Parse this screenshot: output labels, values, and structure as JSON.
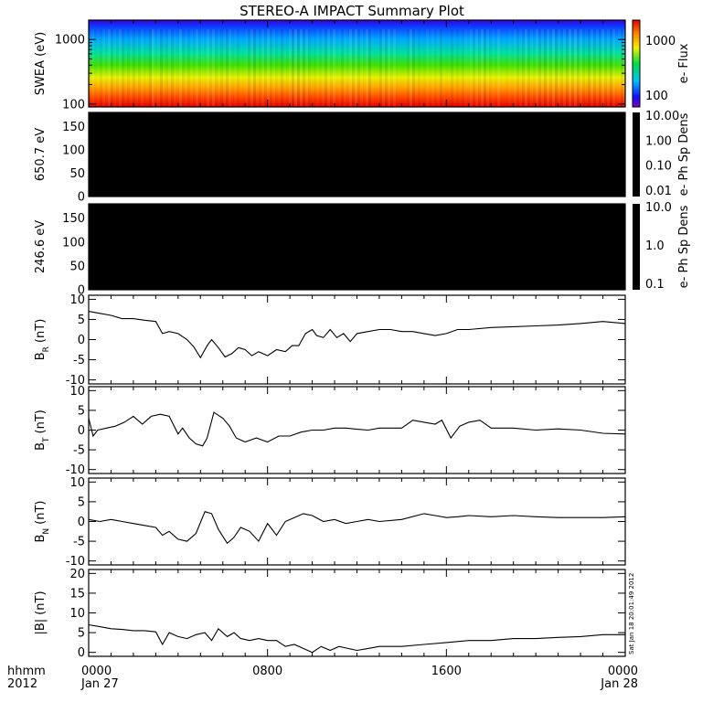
{
  "title": "STEREO-A IMPACT Summary Plot",
  "stamp": "Sat Jan 18 20:01:49 2012",
  "colors": {
    "frame": "#000000",
    "line": "#000000",
    "dark": "#000000"
  },
  "x_axis": {
    "range_hours": [
      0,
      24
    ],
    "ticks": [
      {
        "hour": 0,
        "label": "0000",
        "sublabel": "Jan 27"
      },
      {
        "hour": 8,
        "label": "0800",
        "sublabel": ""
      },
      {
        "hour": 16,
        "label": "1600",
        "sublabel": ""
      },
      {
        "hour": 24,
        "label": "0000",
        "sublabel": "Jan 28"
      }
    ],
    "left_label_1": "hhmm",
    "left_label_2": "2012"
  },
  "chart_data": [
    {
      "type": "heatmap",
      "ylabel": "SWEA (eV)",
      "ylim": [
        90,
        2000
      ],
      "yscale": "log",
      "yticks": [
        {
          "value": 100,
          "label": "100"
        },
        {
          "value": 1000,
          "label": "1000"
        }
      ],
      "colorbar": {
        "label": "e- Flux",
        "ticks": [
          "1000",
          "100"
        ],
        "scale": "rainbow"
      }
    },
    {
      "type": "heatmap",
      "ylabel": "650.7 eV",
      "ylim": [
        0,
        180
      ],
      "yticks": [
        {
          "value": 0,
          "label": "0"
        },
        {
          "value": 50,
          "label": "50"
        },
        {
          "value": 100,
          "label": "100"
        },
        {
          "value": 150,
          "label": "150"
        }
      ],
      "colorbar": {
        "label": "e- Ph Sp Dens",
        "ticks": [
          "10.00",
          "1.00",
          "0.10",
          "0.01"
        ]
      }
    },
    {
      "type": "heatmap",
      "ylabel": "246.6 eV",
      "ylim": [
        0,
        180
      ],
      "yticks": [
        {
          "value": 0,
          "label": "0"
        },
        {
          "value": 50,
          "label": "50"
        },
        {
          "value": 100,
          "label": "100"
        },
        {
          "value": 150,
          "label": "150"
        }
      ],
      "colorbar": {
        "label": "e- Ph Sp Dens",
        "ticks": [
          "10.0",
          "1.0",
          "0.1"
        ]
      }
    },
    {
      "type": "line",
      "ylabel": "B",
      "ylabel_sub": "R",
      "ylabel_unit": "(nT)",
      "ylim": [
        -11,
        11
      ],
      "yticks": [
        {
          "value": 10,
          "label": "10"
        },
        {
          "value": 5,
          "label": "5"
        },
        {
          "value": 0,
          "label": "0"
        },
        {
          "value": -5,
          "label": "-5"
        },
        {
          "value": -10,
          "label": "-10"
        }
      ],
      "x": [
        0,
        0.5,
        1,
        1.5,
        2,
        2.5,
        3,
        3.3,
        3.6,
        4,
        4.4,
        4.7,
        5,
        5.3,
        5.5,
        5.8,
        6.1,
        6.4,
        6.7,
        7,
        7.3,
        7.6,
        8,
        8.4,
        8.8,
        9.1,
        9.4,
        9.7,
        10,
        10.2,
        10.5,
        10.8,
        11.1,
        11.4,
        11.7,
        12,
        12.5,
        13,
        13.5,
        14,
        14.5,
        15,
        15.5,
        16,
        16.5,
        17,
        18,
        19,
        20,
        21,
        22,
        23,
        24
      ],
      "y": [
        7,
        6.5,
        6,
        5.2,
        5.2,
        4.8,
        4.5,
        1.5,
        2,
        1.5,
        0,
        -1.8,
        -4.5,
        -1.5,
        0,
        -2,
        -4.3,
        -3.5,
        -2,
        -2.5,
        -4,
        -3,
        -4,
        -2.5,
        -3,
        -1.5,
        -1.5,
        1.5,
        2.5,
        1,
        0.5,
        2.5,
        0.5,
        1.5,
        -0.5,
        1.5,
        2,
        2.5,
        2.5,
        2,
        2,
        1.5,
        1,
        1.5,
        2.5,
        2.5,
        3,
        3.2,
        3.4,
        3.6,
        4,
        4.5,
        4
      ]
    },
    {
      "type": "line",
      "ylabel": "B",
      "ylabel_sub": "T",
      "ylabel_unit": "(nT)",
      "ylim": [
        -11,
        11
      ],
      "yticks": [
        {
          "value": 10,
          "label": "10"
        },
        {
          "value": 5,
          "label": "5"
        },
        {
          "value": 0,
          "label": "0"
        },
        {
          "value": -5,
          "label": "-5"
        },
        {
          "value": -10,
          "label": "-10"
        }
      ],
      "x": [
        0,
        0.2,
        0.4,
        0.8,
        1.2,
        1.6,
        2,
        2.4,
        2.8,
        3.2,
        3.6,
        4,
        4.2,
        4.5,
        4.8,
        5.1,
        5.3,
        5.6,
        6,
        6.3,
        6.6,
        7,
        7.5,
        8,
        8.5,
        9,
        9.5,
        10,
        10.5,
        11,
        11.5,
        12,
        12.5,
        13,
        13.5,
        14,
        14.5,
        15,
        15.5,
        15.8,
        16.2,
        16.6,
        17,
        17.5,
        18,
        19,
        20,
        21,
        22,
        23,
        24
      ],
      "y": [
        3,
        -1.5,
        0,
        0.5,
        1,
        2,
        3.5,
        1.5,
        3.5,
        4,
        3.5,
        -1,
        0.5,
        -2,
        -3.5,
        -4,
        -2,
        4.5,
        3,
        1,
        -2,
        -3,
        -2,
        -3,
        -1.5,
        -1.5,
        -0.5,
        0,
        0,
        0.5,
        0.5,
        0.2,
        0,
        0.5,
        0.5,
        0.5,
        2.5,
        2,
        1.5,
        2.5,
        -2,
        1,
        2,
        2.5,
        0.5,
        0.5,
        0,
        0.3,
        0,
        -0.8,
        -1
      ]
    },
    {
      "type": "line",
      "ylabel": "B",
      "ylabel_sub": "N",
      "ylabel_unit": "(nT)",
      "ylim": [
        -11,
        11
      ],
      "yticks": [
        {
          "value": 10,
          "label": "10"
        },
        {
          "value": 5,
          "label": "5"
        },
        {
          "value": 0,
          "label": "0"
        },
        {
          "value": -5,
          "label": "-5"
        },
        {
          "value": -10,
          "label": "-10"
        }
      ],
      "x": [
        0,
        0.5,
        1,
        1.5,
        2,
        2.5,
        3,
        3.3,
        3.6,
        4,
        4.4,
        4.8,
        5.2,
        5.5,
        5.8,
        6.2,
        6.5,
        6.8,
        7.2,
        7.6,
        8,
        8.4,
        8.8,
        9.2,
        9.6,
        10,
        10.5,
        11,
        11.5,
        12,
        12.5,
        13,
        14,
        15,
        15.5,
        16,
        16.5,
        17,
        18,
        19,
        20,
        21,
        22,
        23,
        24
      ],
      "y": [
        0.5,
        0,
        0.5,
        0,
        -0.5,
        -1,
        -1.5,
        -3.5,
        -2.5,
        -4.5,
        -5,
        -3,
        2.5,
        2,
        -2,
        -5.5,
        -4,
        -1.5,
        -2.5,
        -5,
        -0.5,
        -3.5,
        0,
        1,
        2,
        1.5,
        0,
        0.5,
        -0.5,
        0,
        0.5,
        0,
        0.5,
        2,
        1.5,
        1,
        1.2,
        1.5,
        1.2,
        1.5,
        1.2,
        1,
        1,
        1,
        1.2
      ]
    },
    {
      "type": "line",
      "ylabel": "|B|",
      "ylabel_sub": "",
      "ylabel_unit": "(nT)",
      "ylim": [
        -1,
        21
      ],
      "yticks": [
        {
          "value": 20,
          "label": "20"
        },
        {
          "value": 15,
          "label": "15"
        },
        {
          "value": 10,
          "label": "10"
        },
        {
          "value": 5,
          "label": "5"
        },
        {
          "value": 0,
          "label": "0"
        }
      ],
      "x": [
        0,
        0.5,
        1,
        1.5,
        2,
        2.5,
        3,
        3.3,
        3.6,
        4,
        4.4,
        4.8,
        5.2,
        5.5,
        5.8,
        6.2,
        6.5,
        6.8,
        7.2,
        7.6,
        8,
        8.4,
        8.8,
        9.2,
        9.6,
        10,
        10.4,
        10.8,
        11.2,
        11.6,
        12,
        12.5,
        13,
        14,
        15,
        16,
        17,
        18,
        19,
        20,
        21,
        22,
        23,
        24
      ],
      "y": [
        7,
        6.5,
        6,
        5.8,
        5.5,
        5.5,
        5.2,
        2,
        5,
        4,
        3.5,
        4.5,
        5,
        3,
        6,
        4,
        5,
        3.5,
        3,
        3.5,
        3,
        3,
        1.5,
        2,
        1,
        0,
        1.5,
        0.5,
        1.5,
        1,
        0.5,
        1,
        1.5,
        1.5,
        2,
        2.5,
        3,
        3,
        3.5,
        3.5,
        3.8,
        4,
        4.5,
        4.5
      ]
    }
  ]
}
